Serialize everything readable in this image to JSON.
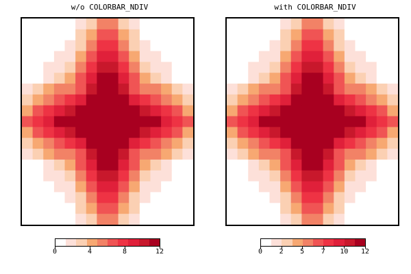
{
  "chart_data": [
    {
      "type": "heatmap",
      "title": "w/o COLORBAR_NDIV",
      "colors": [
        "#ffffff",
        "#fde0d9",
        "#fbd0b3",
        "#f7a872",
        "#f28266",
        "#f05454",
        "#ee3344",
        "#e0203a",
        "#c8182c",
        "#a80020"
      ],
      "levels": [
        0,
        1.2,
        2.4,
        3.6,
        4.8,
        6.0,
        7.2,
        8.4,
        9.6,
        10.8,
        12
      ],
      "grid_rows": 19,
      "grid_cols": 16,
      "value_range": [
        0,
        12
      ],
      "colorbar": {
        "ticks": [
          0,
          4,
          8,
          12
        ],
        "labels": [
          "0",
          "4",
          "8",
          "12"
        ],
        "min": 0,
        "max": 12
      }
    },
    {
      "type": "heatmap",
      "title": "with COLORBAR_NDIV",
      "colors": [
        "#ffffff",
        "#fde0d9",
        "#fbd0b3",
        "#f7a872",
        "#f28266",
        "#f05454",
        "#ee3344",
        "#e0203a",
        "#c8182c",
        "#a80020"
      ],
      "levels": [
        0,
        1.2,
        2.4,
        3.6,
        4.8,
        6.0,
        7.2,
        8.4,
        9.6,
        10.8,
        12
      ],
      "grid_rows": 19,
      "grid_cols": 16,
      "value_range": [
        0,
        12
      ],
      "colorbar": {
        "ticks": [
          0,
          2.4,
          4.8,
          7.2,
          9.6,
          12
        ],
        "labels": [
          "0",
          "2",
          "5",
          "7",
          "10",
          "12"
        ],
        "min": 0,
        "max": 12
      }
    }
  ]
}
